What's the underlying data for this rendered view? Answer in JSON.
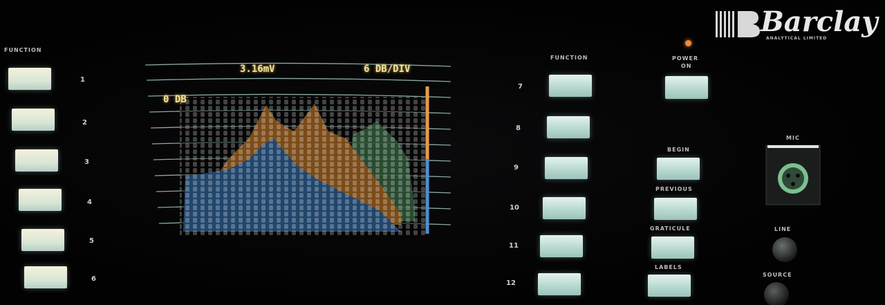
{
  "left_panel": {
    "label": "FUNCTION",
    "keys": [
      "1",
      "2",
      "3",
      "4",
      "5",
      "6"
    ]
  },
  "display": {
    "reference": "3.16mV",
    "scale": "6 DB/DIV",
    "level": "0 DB"
  },
  "right_panel": {
    "label": "FUNCTION",
    "keys": [
      "7",
      "8",
      "9",
      "10",
      "11",
      "12"
    ],
    "power": [
      "POWER",
      "ON"
    ],
    "controls": [
      "BEGIN",
      "PREVIOUS",
      "GRATICULE",
      "LABELS"
    ]
  },
  "inputs": {
    "mic": "MIC",
    "line": "LINE",
    "source": "SOURCE"
  },
  "brand": {
    "name": "Barclay",
    "subtitle": "ANALYTICAL LIMITED"
  }
}
